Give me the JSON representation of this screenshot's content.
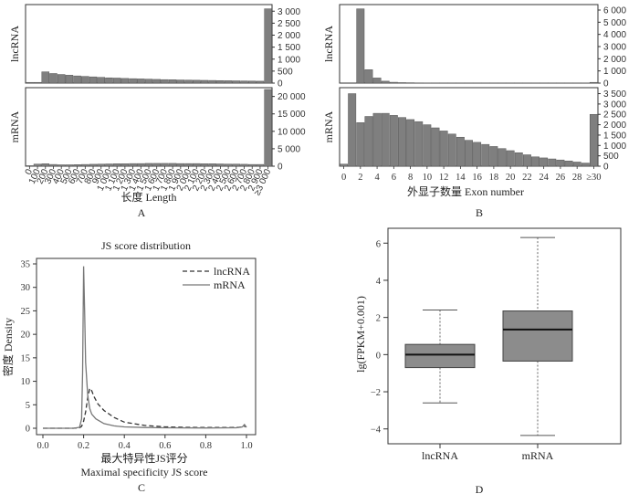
{
  "chart_data": [
    {
      "id": "A",
      "type": "bar",
      "panel_label": "A",
      "xlabel": "长度 Length",
      "categories": [
        "0",
        "100",
        "200",
        "300",
        "400",
        "500",
        "600",
        "700",
        "800",
        "900",
        "1 000",
        "1 100",
        "1 200",
        "1 300",
        "1 400",
        "1 500",
        "1 600",
        "1 700",
        "1 800",
        "1 900",
        "2 000",
        "2 100",
        "2 200",
        "2 300",
        "2 400",
        "2 500",
        "2 600",
        "2 700",
        "2 800",
        "2 900",
        "≥3 000"
      ],
      "facets": [
        {
          "name": "lncRNA",
          "yticks": [
            "0",
            "500",
            "1 000",
            "1 500",
            "2 000",
            "2 500",
            "3 000"
          ],
          "ylim": [
            0,
            3200
          ],
          "values": [
            30,
            30,
            470,
            400,
            360,
            330,
            300,
            280,
            260,
            240,
            220,
            210,
            195,
            185,
            175,
            165,
            155,
            145,
            140,
            130,
            125,
            120,
            115,
            110,
            105,
            100,
            95,
            90,
            85,
            80,
            3100
          ]
        },
        {
          "name": "mRNA",
          "yticks": [
            "0",
            "5 000",
            "10 000",
            "15 000",
            "20 000"
          ],
          "ylim": [
            0,
            22000
          ],
          "values": [
            150,
            600,
            700,
            500,
            400,
            400,
            450,
            500,
            550,
            600,
            650,
            700,
            700,
            750,
            750,
            800,
            800,
            800,
            800,
            750,
            750,
            750,
            700,
            700,
            650,
            600,
            600,
            550,
            500,
            500,
            22000
          ]
        }
      ]
    },
    {
      "id": "B",
      "type": "bar",
      "panel_label": "B",
      "xlabel": "外显子数量 Exon number",
      "xticks": [
        "0",
        "2",
        "4",
        "6",
        "8",
        "10",
        "12",
        "14",
        "16",
        "18",
        "20",
        "22",
        "24",
        "26",
        "28",
        "≥30"
      ],
      "facets": [
        {
          "name": "lncRNA",
          "yticks": [
            "0",
            "1 000",
            "2 000",
            "3 000",
            "4 000",
            "5 000",
            "6 000"
          ],
          "ylim": [
            0,
            6300
          ],
          "values": [
            0,
            0,
            6100,
            1100,
            420,
            160,
            70,
            40,
            30,
            20,
            15,
            10,
            10,
            10,
            10,
            10,
            10,
            10,
            10,
            10,
            10,
            10,
            10,
            10,
            10,
            10,
            10,
            10,
            10,
            10,
            60
          ]
        },
        {
          "name": "mRNA",
          "yticks": [
            "0",
            "500",
            "1 000",
            "1 500",
            "2 000",
            "2 500",
            "3 000",
            "3 500"
          ],
          "ylim": [
            0,
            3700
          ],
          "values": [
            100,
            3500,
            2100,
            2400,
            2550,
            2550,
            2450,
            2350,
            2250,
            2150,
            2000,
            1850,
            1700,
            1550,
            1400,
            1250,
            1150,
            1050,
            950,
            850,
            750,
            650,
            550,
            450,
            400,
            350,
            300,
            250,
            200,
            150,
            2500
          ]
        }
      ]
    },
    {
      "id": "C",
      "type": "line",
      "panel_label": "C",
      "title": "JS score distribution",
      "xlabel": "最大特异性JS评分",
      "xlabel2": "Maximal specificity JS score",
      "ylabel": "密度 Density",
      "xlim": [
        0,
        1
      ],
      "ylim": [
        0,
        35
      ],
      "xticks": [
        "0.0",
        "0.2",
        "0.4",
        "0.6",
        "0.8",
        "1.0"
      ],
      "yticks": [
        "0",
        "5",
        "10",
        "15",
        "20",
        "25",
        "30",
        "35"
      ],
      "series": [
        {
          "name": "lncRNA",
          "dash": "dashed",
          "x": [
            0.0,
            0.15,
            0.18,
            0.19,
            0.2,
            0.21,
            0.22,
            0.23,
            0.24,
            0.25,
            0.27,
            0.3,
            0.35,
            0.4,
            0.5,
            0.6,
            0.7,
            0.8,
            0.9,
            0.96,
            0.98,
            0.99,
            1.0
          ],
          "y": [
            0,
            0,
            0.1,
            0.4,
            1.5,
            3.5,
            6.5,
            8.5,
            8.0,
            6.8,
            5.2,
            3.8,
            2.3,
            1.3,
            0.6,
            0.3,
            0.2,
            0.15,
            0.15,
            0.2,
            0.3,
            0.4,
            0.3
          ]
        },
        {
          "name": "mRNA",
          "dash": "solid",
          "x": [
            0.0,
            0.15,
            0.18,
            0.19,
            0.195,
            0.2,
            0.205,
            0.21,
            0.22,
            0.23,
            0.24,
            0.26,
            0.3,
            0.35,
            0.4,
            0.5,
            0.6,
            0.8,
            0.95,
            0.98,
            0.99,
            1.0
          ],
          "y": [
            0,
            0,
            0.2,
            2,
            12,
            34.5,
            25,
            14,
            7,
            4.2,
            3,
            2,
            1,
            0.5,
            0.3,
            0.15,
            0.1,
            0.05,
            0.1,
            0.3,
            0.8,
            0.2
          ]
        }
      ]
    },
    {
      "id": "D",
      "type": "boxplot",
      "panel_label": "D",
      "ylabel": "lg(FPKM+0.001)",
      "ylim": [
        -4.8,
        6.8
      ],
      "yticks": [
        "−4",
        "−2",
        "0",
        "2",
        "4",
        "6"
      ],
      "categories": [
        "lncRNA",
        "mRNA"
      ],
      "boxes": [
        {
          "name": "lncRNA",
          "whisker_low": -2.6,
          "q1": -0.7,
          "median": 0.0,
          "q3": 0.55,
          "whisker_high": 2.4
        },
        {
          "name": "mRNA",
          "whisker_low": -4.35,
          "q1": -0.35,
          "median": 1.35,
          "q3": 2.35,
          "whisker_high": 6.3
        }
      ]
    }
  ]
}
